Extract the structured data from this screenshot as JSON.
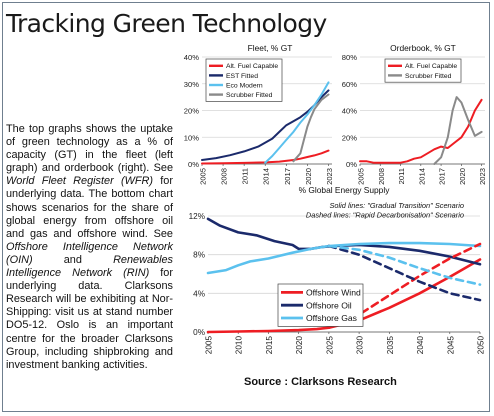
{
  "title": "Tracking Green Technology",
  "body": {
    "p1": "The top graphs shows the uptake of green technology as a % of capacity (GT) in the fleet (left graph) and orderbook (right). See ",
    "ref1": "World Fleet Register (WFR)",
    "p2": " for underlying data. The bottom chart shows scenarios for the share of global energy from offshore oil and gas and offshore wind. See ",
    "ref2": "Offshore Intelligence Network (OIN)",
    "p3": " and ",
    "ref3": "Renewables Intelligence Network (RIN)",
    "p4": " for underlying data. Clarksons Research will be exhibiting at Nor-Shipping: visit us at stand number DO5-12. Oslo is an important centre for the broader Clarksons Group, including shipbroking and investment banking activities."
  },
  "source": "Source : Clarksons Research",
  "colors": {
    "red": "#ee1d23",
    "navy": "#1b2a6b",
    "lightblue": "#5bc1ee",
    "gray": "#8a8a8a",
    "grid": "#d6d6d6"
  },
  "chart_data": [
    {
      "type": "line",
      "title": "Fleet, % GT",
      "ylim": [
        0,
        40
      ],
      "yticks": [
        "0%",
        "10%",
        "20%",
        "30%",
        "40%"
      ],
      "xticks": [
        "2005",
        "2008",
        "2011",
        "2014",
        "2017",
        "2020",
        "2023"
      ],
      "xlim": [
        2005,
        2023.5
      ],
      "series": [
        {
          "name": "Alt. Fuel Capable",
          "color": "#ee1d23",
          "x": [
            2005,
            2008,
            2011,
            2014,
            2016,
            2018,
            2019,
            2020,
            2021,
            2022,
            2023
          ],
          "values": [
            0.2,
            0.3,
            0.4,
            0.6,
            0.9,
            1.5,
            2.0,
            2.6,
            3.2,
            4.0,
            5.0
          ]
        },
        {
          "name": "EST Fitted",
          "color": "#1b2a6b",
          "x": [
            2005,
            2007,
            2009,
            2011,
            2013,
            2015,
            2016,
            2017,
            2018,
            2019,
            2020,
            2021,
            2022,
            2023
          ],
          "values": [
            1.5,
            2.2,
            3.3,
            4.7,
            6.5,
            9.5,
            12.0,
            14.5,
            16.0,
            17.5,
            19.5,
            22.0,
            25.0,
            27.5
          ]
        },
        {
          "name": "Eco Modern",
          "color": "#5bc1ee",
          "x": [
            2014,
            2015,
            2016,
            2017,
            2018,
            2019,
            2020,
            2021,
            2022,
            2023
          ],
          "values": [
            0.5,
            3.0,
            6.0,
            9.0,
            12.0,
            15.5,
            18.5,
            22.0,
            26.0,
            30.5
          ]
        },
        {
          "name": "Scrubber Fitted",
          "color": "#8a8a8a",
          "x": [
            2018,
            2019,
            2019.5,
            2020,
            2020.5,
            2021,
            2022,
            2023
          ],
          "values": [
            1.0,
            4.0,
            9.0,
            14.0,
            17.5,
            20.5,
            24.0,
            26.0
          ]
        }
      ]
    },
    {
      "type": "line",
      "title": "Orderbook, % GT",
      "ylim": [
        0,
        80
      ],
      "yticks": [
        "0%",
        "20%",
        "40%",
        "60%",
        "80%"
      ],
      "xticks": [
        "2005",
        "2008",
        "2011",
        "2014",
        "2017",
        "2020",
        "2023"
      ],
      "xlim": [
        2005,
        2023.5
      ],
      "series": [
        {
          "name": "Alt. Fuel Capable",
          "color": "#ee1d23",
          "x": [
            2005,
            2006,
            2007,
            2008,
            2009,
            2010,
            2011,
            2012,
            2013,
            2014,
            2015,
            2016,
            2017,
            2018,
            2019,
            2020,
            2021,
            2022,
            2023
          ],
          "values": [
            2,
            2,
            1,
            1,
            1,
            1,
            1,
            2,
            4,
            5,
            8,
            11,
            13,
            12,
            16,
            20,
            28,
            40,
            48
          ]
        },
        {
          "name": "Scrubber Fitted",
          "color": "#8a8a8a",
          "x": [
            2016,
            2017,
            2018,
            2018.7,
            2019.3,
            2020,
            2021,
            2022,
            2023
          ],
          "values": [
            0,
            5,
            20,
            40,
            50,
            46,
            33,
            21,
            24
          ]
        }
      ]
    },
    {
      "type": "line",
      "title": "% Global Energy Supply",
      "annotations": [
        "Solid lines: \"Gradual Transition\" Scenario",
        "Dashed lines: \"Rapid Decarbonisation\" Scenario"
      ],
      "ylim": [
        0,
        12
      ],
      "yticks": [
        "0%",
        "4%",
        "8%",
        "12%"
      ],
      "xticks": [
        "2005",
        "2010",
        "2015",
        "2020",
        "2025",
        "2030",
        "2035",
        "2040",
        "2045",
        "2050"
      ],
      "xlim": [
        2005,
        2050
      ],
      "series": [
        {
          "name": "Offshore Wind",
          "color": "#ee1d23",
          "dashed": false,
          "x": [
            2005,
            2010,
            2015,
            2020,
            2023,
            2025,
            2030,
            2035,
            2040,
            2045,
            2050
          ],
          "values": [
            0.0,
            0.05,
            0.1,
            0.2,
            0.3,
            0.45,
            1.2,
            2.5,
            4.0,
            5.7,
            7.5
          ]
        },
        {
          "name": "Offshore Oil",
          "color": "#1b2a6b",
          "dashed": false,
          "x": [
            2005,
            2007,
            2010,
            2013,
            2016,
            2019,
            2020,
            2022,
            2024,
            2026,
            2030,
            2035,
            2040,
            2045,
            2050
          ],
          "values": [
            11.7,
            11.0,
            10.3,
            10.0,
            9.4,
            9.0,
            8.6,
            8.6,
            8.8,
            8.9,
            9.0,
            8.8,
            8.4,
            7.8,
            7.0
          ]
        },
        {
          "name": "Offshore Gas",
          "color": "#5bc1ee",
          "dashed": false,
          "x": [
            2005,
            2008,
            2010,
            2012,
            2015,
            2019,
            2022,
            2025,
            2030,
            2035,
            2040,
            2045,
            2050
          ],
          "values": [
            6.1,
            6.4,
            6.9,
            7.3,
            7.6,
            8.2,
            8.6,
            8.9,
            9.1,
            9.2,
            9.2,
            9.1,
            8.9
          ]
        },
        {
          "name": "Offshore Wind (Rapid Decarbonisation)",
          "color": "#ee1d23",
          "dashed": true,
          "x": [
            2025,
            2030,
            2035,
            2040,
            2045,
            2050
          ],
          "values": [
            0.45,
            1.8,
            3.8,
            5.8,
            7.6,
            9.1
          ]
        },
        {
          "name": "Offshore Oil (Rapid Decarbonisation)",
          "color": "#1b2a6b",
          "dashed": true,
          "x": [
            2025,
            2030,
            2035,
            2040,
            2045,
            2050
          ],
          "values": [
            8.9,
            8.0,
            6.6,
            5.2,
            4.0,
            3.3
          ]
        },
        {
          "name": "Offshore Gas (Rapid Decarbonisation)",
          "color": "#5bc1ee",
          "dashed": true,
          "x": [
            2025,
            2030,
            2035,
            2040,
            2045,
            2050
          ],
          "values": [
            8.9,
            8.5,
            7.7,
            6.6,
            5.6,
            4.9
          ]
        }
      ]
    }
  ]
}
